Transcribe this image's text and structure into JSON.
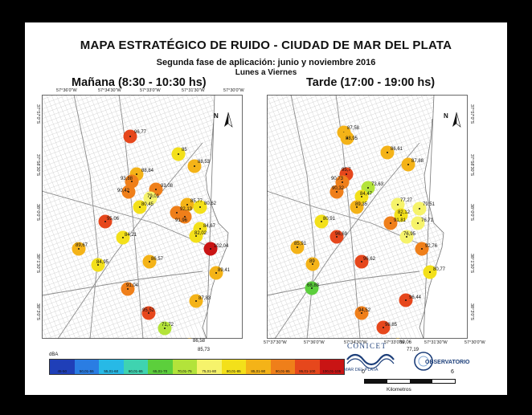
{
  "header": {
    "title": "MAPA ESTRATÉGICO DE RUIDO -  CIUDAD DE MAR DEL PLATA",
    "subtitle": "Segunda fase de aplicación: junio y noviembre 2016",
    "days": "Lunes a Viernes"
  },
  "panels": [
    {
      "title": "Mañana (8:30 - 10:30 hs)",
      "top_coords": [
        "57°36'0\"W",
        "57°34'30\"W",
        "57°33'0\"W",
        "57°31'30\"W",
        "57°30'0\"W"
      ],
      "left_coords": [
        "37°57'0\"S",
        "37°58'30\"S",
        "38°0'0\"S",
        "38°1'30\"S",
        "38°3'0\"S"
      ],
      "north": "N",
      "points": [
        {
          "label": "96,77",
          "value": 96.77
        },
        {
          "label": "85",
          "value": 85.0
        },
        {
          "label": "88,53",
          "value": 88.53
        },
        {
          "label": "88,84",
          "value": 88.84
        },
        {
          "label": "93,88",
          "value": 93.88
        },
        {
          "label": "90,42",
          "value": 90.42
        },
        {
          "label": "93,08",
          "value": 93.08
        },
        {
          "label": "79,01",
          "value": 79.01
        },
        {
          "label": "80,45",
          "value": 80.45
        },
        {
          "label": "85,77",
          "value": 85.77
        },
        {
          "label": "80,62",
          "value": 80.62
        },
        {
          "label": "92,13",
          "value": 92.13
        },
        {
          "label": "91,96",
          "value": 91.96
        },
        {
          "label": "95,06",
          "value": 95.06
        },
        {
          "label": "84,67",
          "value": 84.67
        },
        {
          "label": "84,21",
          "value": 84.21
        },
        {
          "label": "82,02",
          "value": 82.02
        },
        {
          "label": "102,04",
          "value": 102.04
        },
        {
          "label": "89,67",
          "value": 89.67
        },
        {
          "label": "86,57",
          "value": 86.57
        },
        {
          "label": "89,41",
          "value": 89.41
        },
        {
          "label": "84,95",
          "value": 84.95
        },
        {
          "label": "91,04",
          "value": 91.04
        },
        {
          "label": "87,83",
          "value": 87.83
        },
        {
          "label": "95,52",
          "value": 95.52
        },
        {
          "label": "71,72",
          "value": 71.72
        },
        {
          "label": "86,58",
          "value": 86.58
        },
        {
          "label": "85,73",
          "value": 85.73
        }
      ]
    },
    {
      "title": "Tarde (17:00 - 19:00 hs)",
      "bottom_coords": [
        "57°37'30\"W",
        "57°36'0\"W",
        "57°34'30\"W",
        "57°33'0\"W",
        "57°31'30\"W",
        "57°30'0\"W"
      ],
      "right_coords": [
        "37°57'0\"S",
        "37°58'30\"S",
        "38°0'0\"S",
        "38°1'30\"S",
        "38°3'0\"S"
      ],
      "north": "N",
      "points": [
        {
          "label": "87,58",
          "value": 87.58
        },
        {
          "label": "88,95",
          "value": 88.95
        },
        {
          "label": "86,61",
          "value": 86.61
        },
        {
          "label": "87,88",
          "value": 87.88
        },
        {
          "label": "95,7",
          "value": 95.7
        },
        {
          "label": "90,73",
          "value": 90.73
        },
        {
          "label": "90,32",
          "value": 90.32
        },
        {
          "label": "73,63",
          "value": 73.63
        },
        {
          "label": "84,47",
          "value": 84.47
        },
        {
          "label": "89,35",
          "value": 89.35
        },
        {
          "label": "77,27",
          "value": 77.27
        },
        {
          "label": "79,51",
          "value": 79.51
        },
        {
          "label": "82,12",
          "value": 82.12
        },
        {
          "label": "80,91",
          "value": 80.91
        },
        {
          "label": "91,81",
          "value": 91.81
        },
        {
          "label": "76,71",
          "value": 76.71
        },
        {
          "label": "96,69",
          "value": 96.69
        },
        {
          "label": "76,95",
          "value": 76.95
        },
        {
          "label": "85,91",
          "value": 85.91
        },
        {
          "label": "92,76",
          "value": 92.76
        },
        {
          "label": "89",
          "value": 89.0
        },
        {
          "label": "96,62",
          "value": 96.62
        },
        {
          "label": "80,77",
          "value": 80.77
        },
        {
          "label": "68,88",
          "value": 68.88
        },
        {
          "label": "96,44",
          "value": 96.44
        },
        {
          "label": "94,52",
          "value": 94.52
        },
        {
          "label": "98,85",
          "value": 98.85
        },
        {
          "label": "89,06",
          "value": 89.06
        },
        {
          "label": "77,19",
          "value": 77.19
        }
      ]
    }
  ],
  "legend": {
    "unit": "dBA",
    "classes": [
      {
        "label": "45-50",
        "color": "#1f3fb8"
      },
      {
        "label": "50,01-55",
        "color": "#2a7de3"
      },
      {
        "label": "55,01-60",
        "color": "#27b9e6"
      },
      {
        "label": "60,01-65",
        "color": "#3fd3b0"
      },
      {
        "label": "65,01-70",
        "color": "#5ccf3c"
      },
      {
        "label": "70,01-75",
        "color": "#b3e33a"
      },
      {
        "label": "75,01-80",
        "color": "#f6f36b"
      },
      {
        "label": "80,01-85",
        "color": "#f3e01a"
      },
      {
        "label": "85,01-90",
        "color": "#f4b318"
      },
      {
        "label": "90,01-95",
        "color": "#ef7f1a"
      },
      {
        "label": "95,01-100",
        "color": "#e6471c"
      },
      {
        "label": "100,01-105",
        "color": "#c91414"
      }
    ]
  },
  "logos": {
    "conicet": "CONICET",
    "conicet_sub": "MAR DEL PLATA",
    "observatorio": "OBSERVATORIO"
  },
  "scale": {
    "start": "0",
    "end": "6",
    "unit": "Kilometros"
  }
}
